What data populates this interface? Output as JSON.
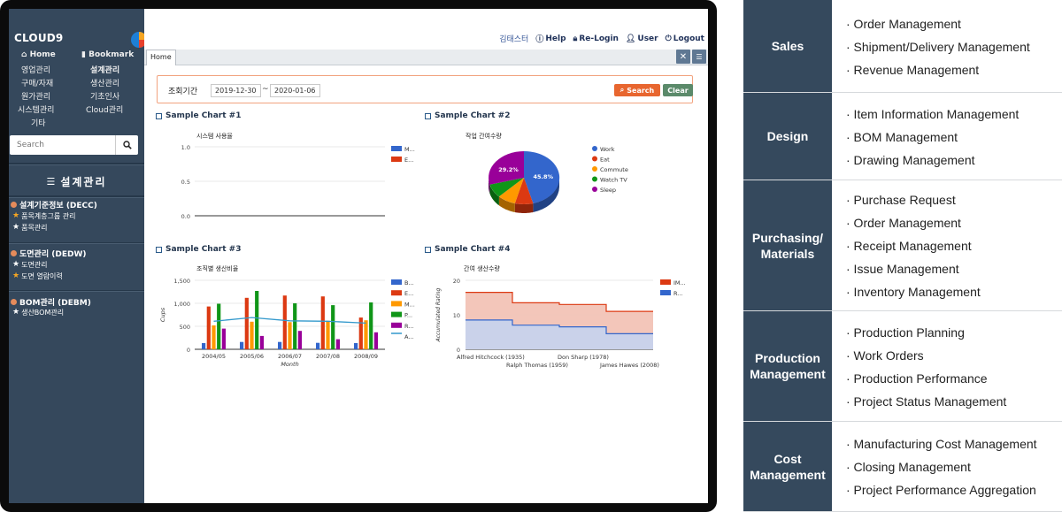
{
  "app": {
    "brand": "CLOUD9",
    "nav": {
      "home": "Home",
      "bookmark": "Bookmark",
      "items": [
        "영업관리",
        "설계관리",
        "구매/자재",
        "생산관리",
        "원가관리",
        "기초인사",
        "시스템관리",
        "Cloud관리",
        "기타"
      ]
    },
    "search_placeholder": "Search",
    "section_title": "설계관리",
    "tree": [
      {
        "label": "설계기준정보 (DECC)",
        "children": [
          {
            "label": "품목계층그룹 관리",
            "star": "gold"
          },
          {
            "label": "품목관리",
            "star": "white"
          }
        ]
      },
      {
        "label": "도면관리 (DEDW)",
        "children": [
          {
            "label": "도면관리",
            "star": "white"
          },
          {
            "label": "도면 열람이력",
            "star": "gold"
          }
        ]
      },
      {
        "label": "BOM관리 (DEBM)",
        "children": [
          {
            "label": "생산BOM관리",
            "star": "white"
          }
        ]
      }
    ]
  },
  "topbar": {
    "user_name": "김태스터",
    "help": "Help",
    "relogin": "Re-Login",
    "user": "User",
    "logout": "Logout"
  },
  "tabs": {
    "home": "Home"
  },
  "filter": {
    "label": "조회기간",
    "from": "2019-12-30",
    "sep": "~",
    "to": "2020-01-06",
    "search": "Search",
    "clear": "Clear"
  },
  "chart_data": [
    {
      "panel": "Sample Chart #1",
      "type": "line",
      "title": "시스템 사용율",
      "yticks": [
        "1.0",
        "0.5",
        "0.0"
      ],
      "ylim": [
        0,
        1.0
      ],
      "legend": [
        {
          "name": "M...",
          "color": "#3366cc"
        },
        {
          "name": "E...",
          "color": "#dc3912"
        }
      ],
      "series": []
    },
    {
      "panel": "Sample Chart #2",
      "type": "pie",
      "title": "작업 간여수량",
      "slices": [
        {
          "name": "Work",
          "value": 45.8,
          "label": "45.8%",
          "color": "#3366cc"
        },
        {
          "name": "Eat",
          "value": 8.3,
          "color": "#dc3912"
        },
        {
          "name": "Commute",
          "value": 8.3,
          "color": "#ff9900"
        },
        {
          "name": "Watch TV",
          "value": 8.4,
          "color": "#109618"
        },
        {
          "name": "Sleep",
          "value": 29.2,
          "label": "29.2%",
          "color": "#990099"
        }
      ]
    },
    {
      "panel": "Sample Chart #3",
      "type": "bar",
      "title": "조직별 생산비율",
      "categories": [
        "2004/05",
        "2005/06",
        "2006/07",
        "2007/08",
        "2008/09"
      ],
      "xlabel": "Month",
      "ylabel": "Cups",
      "yticks": [
        "1,500",
        "1,000",
        "500",
        "0"
      ],
      "ylim": [
        0,
        1500
      ],
      "series": [
        {
          "name": "B...",
          "color": "#3366cc",
          "values": [
            135,
            160,
            160,
            140,
            135
          ]
        },
        {
          "name": "E...",
          "color": "#dc3912",
          "values": [
            930,
            1120,
            1170,
            1150,
            690
          ]
        },
        {
          "name": "M...",
          "color": "#ff9900",
          "values": [
            520,
            600,
            590,
            620,
            630
          ]
        },
        {
          "name": "P...",
          "color": "#109618",
          "values": [
            990,
            1270,
            1000,
            960,
            1020
          ]
        },
        {
          "name": "R...",
          "color": "#990099",
          "values": [
            450,
            290,
            400,
            220,
            370
          ]
        },
        {
          "name": "A...",
          "color": "#3399cc",
          "type": "line",
          "values": [
            610,
            690,
            620,
            610,
            570
          ]
        }
      ]
    },
    {
      "panel": "Sample Chart #4",
      "type": "area",
      "title": "간여 생산수량",
      "ylabel": "Accumulated Rating",
      "yticks": [
        "20",
        "10",
        "0"
      ],
      "ylim": [
        0,
        20
      ],
      "xlabels_top": [
        "Alfred Hitchcock (1935)",
        "Don Sharp (1978)"
      ],
      "xlabels_bottom": [
        "Ralph Thomas (1959)",
        "James Hawes (2008)"
      ],
      "series": [
        {
          "name": "IM...",
          "color": "#dc3912",
          "values": [
            16.5,
            13.5,
            13,
            11
          ]
        },
        {
          "name": "R...",
          "color": "#3366cc",
          "values": [
            8.5,
            7,
            6.5,
            4.5
          ]
        }
      ]
    }
  ],
  "menu_table": [
    {
      "category": "Sales",
      "items": [
        "· Order Management",
        "· Shipment/Delivery Management",
        "· Revenue Management"
      ]
    },
    {
      "category": "Design",
      "items": [
        "· Item Information Management",
        "· BOM Management",
        "· Drawing Management"
      ]
    },
    {
      "category": "Purchasing/ Materials",
      "items": [
        "· Purchase Request",
        "· Order Management",
        "· Receipt Management",
        "· Issue Management",
        "· Inventory Management"
      ]
    },
    {
      "category": "Production Management",
      "items": [
        "· Production Planning",
        "· Work Orders",
        "· Production Performance",
        "· Project Status Management"
      ]
    },
    {
      "category": "Cost Management",
      "items": [
        "· Manufacturing Cost Management",
        "· Closing Management",
        "· Project Performance Aggregation"
      ]
    }
  ],
  "colors": {
    "sidebar": "#35485c",
    "accent_orange": "#e8662f",
    "clear_green": "#5b8a6a",
    "category_bg": "#35495d"
  }
}
